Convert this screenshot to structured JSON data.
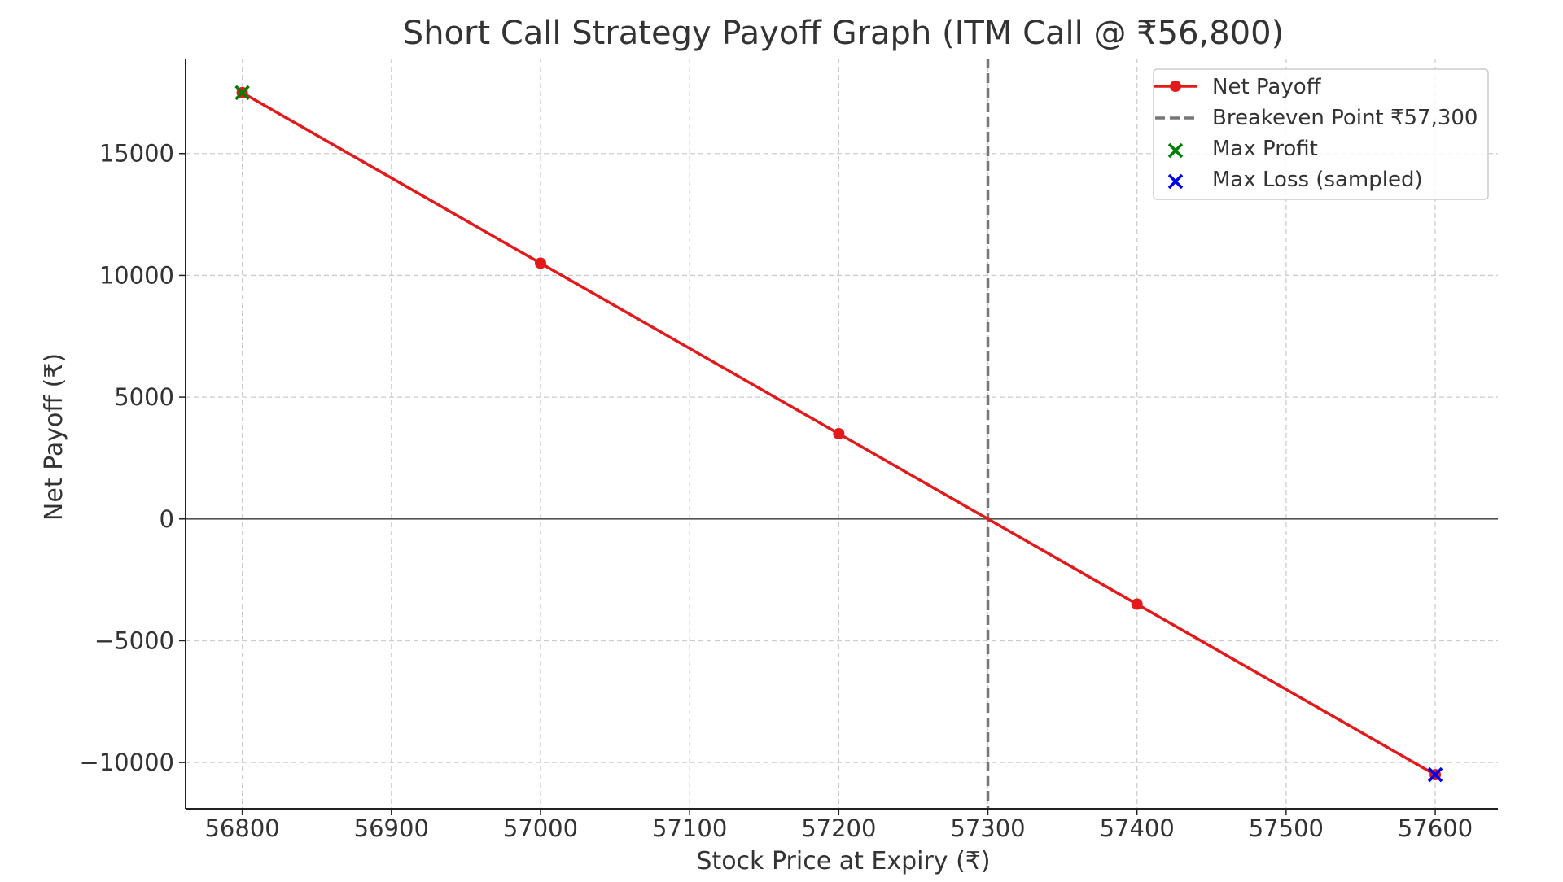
{
  "chart_data": {
    "type": "line",
    "title": "Short Call Strategy Payoff Graph (ITM Call @ ₹56,800)",
    "xlabel": "Stock Price at Expiry (₹)",
    "ylabel": "Net Payoff (₹)",
    "xlim": [
      56762,
      57642
    ],
    "ylim": [
      -11900,
      18900
    ],
    "x_ticks": [
      56800,
      56900,
      57000,
      57100,
      57200,
      57300,
      57400,
      57500,
      57600
    ],
    "y_ticks": [
      -10000,
      -5000,
      0,
      5000,
      10000,
      15000
    ],
    "grid": true,
    "legend_position": "top-right",
    "series": [
      {
        "name": "Net Payoff",
        "color": "#e31a1c",
        "x": [
          56800,
          57000,
          57200,
          57400,
          57600
        ],
        "y": [
          17500,
          10500,
          3500,
          -3500,
          -10500
        ]
      }
    ],
    "breakeven": {
      "name": "Breakeven Point ₹57,300",
      "x": 57300,
      "color": "#777777"
    },
    "max_profit": {
      "name": "Max Profit",
      "x": 56800,
      "y": 17500,
      "color": "#008000"
    },
    "max_loss": {
      "name": "Max Loss (sampled)",
      "x": 57600,
      "y": -10500,
      "color": "#0000ee"
    },
    "zero_line": {
      "y": 0,
      "color": "#555555"
    }
  }
}
